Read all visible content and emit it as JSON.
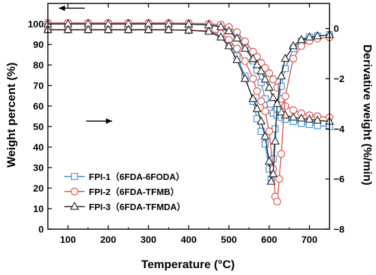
{
  "chart_data": {
    "type": "line",
    "title": "",
    "xlabel": "Temperature (°C)",
    "ylabel_left": "Weight percent (%)",
    "ylabel_right": "Derivative weight (%/min)",
    "xlim": [
      50,
      750
    ],
    "ylim_left": [
      0,
      110
    ],
    "ylim_right": [
      -8,
      1
    ],
    "x_ticks": [
      100,
      200,
      300,
      400,
      500,
      600,
      700
    ],
    "y_ticks_left": [
      0,
      10,
      20,
      30,
      40,
      50,
      60,
      70,
      80,
      90,
      100
    ],
    "y_ticks_right": [
      0,
      -2,
      -4,
      -6,
      -8
    ],
    "grid": false,
    "legend_position": "lower-left",
    "series_colors": [
      "#3a8fd9",
      "#d9534a",
      "#222222"
    ],
    "series": [
      {
        "name": "FPI-1（6FDA-6FODA）",
        "axis": "left",
        "marker": "square",
        "x": [
          50,
          100,
          150,
          200,
          250,
          300,
          350,
          400,
          450,
          480,
          500,
          520,
          540,
          560,
          570,
          580,
          590,
          600,
          610,
          620,
          630,
          640,
          660,
          680,
          700,
          720,
          750
        ],
        "y": [
          100,
          100,
          100,
          100,
          100,
          100,
          100,
          99.9,
          99.6,
          99,
          97.5,
          94.5,
          89.5,
          82,
          77.5,
          71.5,
          63.5,
          58,
          56.5,
          55.5,
          54.5,
          53.5,
          52.5,
          51.5,
          51,
          50.5,
          50
        ]
      },
      {
        "name": "FPI-2（6FDA-TFMB）",
        "axis": "left",
        "marker": "circle",
        "x": [
          50,
          100,
          150,
          200,
          250,
          300,
          350,
          400,
          450,
          480,
          500,
          520,
          540,
          560,
          570,
          580,
          590,
          600,
          610,
          620,
          630,
          640,
          660,
          680,
          700,
          720,
          750
        ],
        "y": [
          100.5,
          100.5,
          100.5,
          100.5,
          100.5,
          100.5,
          100.5,
          100.4,
          100.1,
          99.6,
          98.5,
          96,
          91.5,
          86.5,
          84,
          81,
          78.5,
          76,
          73,
          69,
          63.5,
          60,
          58,
          56.5,
          55.5,
          55,
          54.5
        ]
      },
      {
        "name": "FPI-3（6FDA-TFMDA）",
        "axis": "left",
        "marker": "triangle",
        "x": [
          50,
          100,
          150,
          200,
          250,
          300,
          350,
          400,
          450,
          480,
          500,
          520,
          540,
          560,
          570,
          580,
          590,
          600,
          610,
          620,
          630,
          640,
          660,
          680,
          700,
          720,
          750
        ],
        "y": [
          100,
          100,
          100,
          100,
          100,
          100,
          100,
          99.9,
          99.5,
          98.5,
          96.5,
          93,
          88,
          83,
          80,
          77,
          73,
          69,
          64,
          60,
          57,
          55.5,
          54.5,
          54,
          53.5,
          53,
          52.5
        ]
      },
      {
        "name": "FPI-1 DTG",
        "axis": "right",
        "marker": "square",
        "x": [
          50,
          100,
          150,
          200,
          250,
          300,
          350,
          400,
          450,
          480,
          500,
          520,
          540,
          560,
          570,
          580,
          590,
          600,
          605,
          610,
          615,
          620,
          630,
          640,
          660,
          680,
          700,
          720,
          750
        ],
        "y": [
          -0.05,
          -0.05,
          -0.05,
          -0.05,
          -0.05,
          -0.05,
          -0.05,
          -0.07,
          -0.1,
          -0.3,
          -0.6,
          -1.1,
          -1.9,
          -2.9,
          -3.6,
          -4.1,
          -4.6,
          -5.6,
          -6.0,
          -5.2,
          -4.0,
          -3.2,
          -2.3,
          -1.6,
          -0.8,
          -0.5,
          -0.35,
          -0.3,
          -0.25
        ]
      },
      {
        "name": "FPI-2 DTG",
        "axis": "right",
        "marker": "circle",
        "x": [
          50,
          100,
          150,
          200,
          250,
          300,
          350,
          400,
          450,
          480,
          500,
          520,
          540,
          560,
          570,
          580,
          590,
          600,
          610,
          615,
          620,
          625,
          630,
          640,
          660,
          680,
          700,
          720,
          750
        ],
        "y": [
          -0.05,
          -0.05,
          -0.05,
          -0.05,
          -0.05,
          -0.05,
          -0.05,
          -0.07,
          -0.1,
          -0.2,
          -0.45,
          -0.8,
          -1.3,
          -2.0,
          -2.5,
          -2.9,
          -3.3,
          -4.1,
          -5.6,
          -6.7,
          -6.9,
          -6.0,
          -5.0,
          -2.7,
          -1.2,
          -0.7,
          -0.5,
          -0.4,
          -0.35
        ]
      },
      {
        "name": "FPI-3 DTG",
        "axis": "right",
        "marker": "triangle",
        "x": [
          50,
          100,
          150,
          200,
          250,
          300,
          350,
          400,
          450,
          480,
          500,
          520,
          540,
          560,
          570,
          580,
          590,
          600,
          605,
          610,
          615,
          620,
          630,
          640,
          660,
          680,
          700,
          720,
          750
        ],
        "y": [
          -0.05,
          -0.05,
          -0.05,
          -0.05,
          -0.05,
          -0.05,
          -0.05,
          -0.07,
          -0.12,
          -0.35,
          -0.7,
          -1.25,
          -2.0,
          -2.8,
          -3.2,
          -3.7,
          -4.3,
          -5.3,
          -6.1,
          -5.8,
          -4.5,
          -3.0,
          -1.9,
          -1.2,
          -0.7,
          -0.45,
          -0.35,
          -0.3,
          -0.25
        ]
      }
    ],
    "annotations": [
      {
        "type": "arrow",
        "direction": "left",
        "refers_to": "left axis"
      },
      {
        "type": "arrow",
        "direction": "right",
        "refers_to": "right axis"
      }
    ]
  }
}
